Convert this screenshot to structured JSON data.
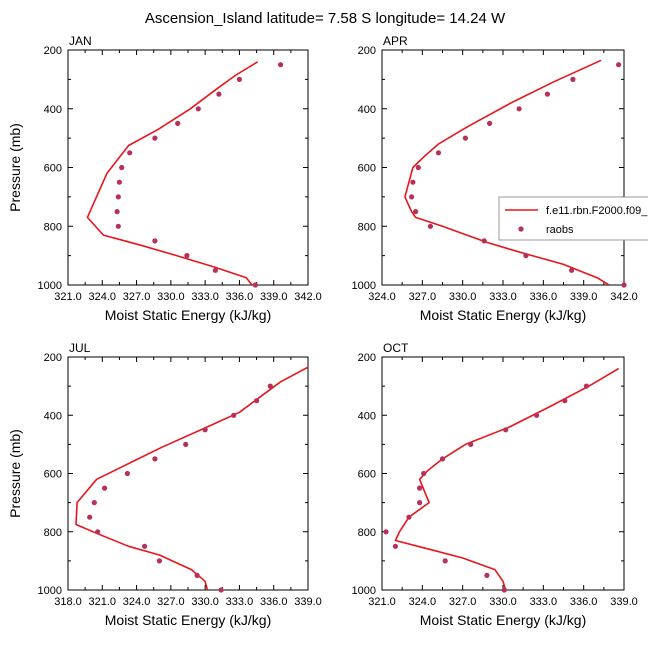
{
  "title": "Ascension_Island  latitude= 7.58 S longitude= 14.24 W",
  "colors": {
    "model_line": "#e8161c",
    "raobs_marker": "#b8305a",
    "axis": "#000000"
  },
  "chart_data": [
    {
      "type": "line",
      "panel": "JAN",
      "xlabel": "Moist Static Energy (kJ/kg)",
      "ylabel": "Pressure (mb)",
      "xlim": [
        321.0,
        342.0
      ],
      "ylim": [
        1000,
        200
      ],
      "xticks": [
        "321.0",
        "324.0",
        "327.0",
        "330.0",
        "333.0",
        "336.0",
        "339.0",
        "342.0"
      ],
      "yticks": [
        "200",
        "400",
        "600",
        "800",
        "1000"
      ],
      "series": [
        {
          "name": "f.e11.rbn.F2000.f09_",
          "style": "line",
          "x": [
            337.6,
            335.7,
            334.1,
            331.7,
            328.9,
            326.3,
            325.6,
            324.4,
            322.7,
            324.1,
            327.4,
            330.5,
            333.9,
            336.6,
            337.1
          ],
          "y": [
            240,
            285,
            330,
            400,
            470,
            525,
            560,
            620,
            770,
            830,
            865,
            900,
            940,
            975,
            1000
          ]
        },
        {
          "name": "raobs",
          "style": "marker",
          "x": [
            339.6,
            336.0,
            334.2,
            332.4,
            330.6,
            328.6,
            326.4,
            325.7,
            325.5,
            325.4,
            325.3,
            325.4,
            328.6,
            331.4,
            333.9,
            337.4
          ],
          "y": [
            250,
            300,
            350,
            400,
            450,
            500,
            550,
            600,
            650,
            700,
            750,
            800,
            850,
            900,
            950,
            1000
          ]
        }
      ]
    },
    {
      "type": "line",
      "panel": "APR",
      "xlabel": "Moist Static Energy (kJ/kg)",
      "ylabel": "",
      "xlim": [
        324.0,
        342.0
      ],
      "ylim": [
        1000,
        200
      ],
      "xticks": [
        "324.0",
        "327.0",
        "330.0",
        "333.0",
        "336.0",
        "339.0",
        "342.0"
      ],
      "yticks": [
        "200",
        "400",
        "600",
        "800",
        "1000"
      ],
      "series": [
        {
          "name": "f.e11.rbn.F2000.f09_",
          "style": "line",
          "x": [
            340.3,
            336.7,
            333.6,
            330.4,
            328.2,
            327.2,
            326.3,
            325.7,
            326.2,
            326.5,
            328.5,
            330.0,
            331.8,
            334.0,
            337.5,
            340.0,
            340.9
          ],
          "y": [
            235,
            310,
            380,
            460,
            520,
            560,
            600,
            700,
            750,
            770,
            800,
            825,
            855,
            885,
            930,
            975,
            1000
          ]
        },
        {
          "name": "raobs",
          "style": "marker",
          "x": [
            341.6,
            338.2,
            336.3,
            334.2,
            332.0,
            330.2,
            328.2,
            326.7,
            326.3,
            326.2,
            326.5,
            327.6,
            331.6,
            334.7,
            338.1,
            342.0
          ],
          "y": [
            250,
            300,
            350,
            400,
            450,
            500,
            550,
            600,
            650,
            700,
            750,
            800,
            850,
            900,
            950,
            1000
          ]
        }
      ]
    },
    {
      "type": "line",
      "panel": "JUL",
      "xlabel": "Moist Static Energy (kJ/kg)",
      "ylabel": "Pressure (mb)",
      "xlim": [
        318.0,
        339.0
      ],
      "ylim": [
        1000,
        200
      ],
      "xticks": [
        "318.0",
        "321.0",
        "324.0",
        "327.0",
        "330.0",
        "333.0",
        "336.0",
        "339.0"
      ],
      "yticks": [
        "200",
        "400",
        "600",
        "800",
        "1000"
      ],
      "series": [
        {
          "name": "f.e11.rbn.F2000.f09_",
          "style": "line",
          "x": [
            339.0,
            336.6,
            334.7,
            333.0,
            330.2,
            326.2,
            323.6,
            320.5,
            318.8,
            318.7,
            320.8,
            323.3,
            326.0,
            328.8,
            330.0,
            330.2
          ],
          "y": [
            235,
            285,
            340,
            390,
            440,
            510,
            560,
            620,
            700,
            775,
            810,
            850,
            880,
            930,
            970,
            1000
          ]
        },
        {
          "name": "raobs",
          "style": "marker",
          "x": [
            335.7,
            334.5,
            332.5,
            330.0,
            328.3,
            325.6,
            323.2,
            321.2,
            320.3,
            319.9,
            320.6,
            324.7,
            326.0,
            329.3,
            331.4
          ],
          "y": [
            300,
            350,
            400,
            450,
            500,
            550,
            600,
            650,
            700,
            750,
            800,
            850,
            900,
            950,
            1000
          ]
        }
      ]
    },
    {
      "type": "line",
      "panel": "OCT",
      "xlabel": "Moist Static Energy (kJ/kg)",
      "ylabel": "",
      "xlim": [
        321.0,
        339.0
      ],
      "ylim": [
        1000,
        200
      ],
      "xticks": [
        "321.0",
        "324.0",
        "327.0",
        "330.0",
        "333.0",
        "336.0",
        "339.0"
      ],
      "yticks": [
        "200",
        "400",
        "600",
        "800",
        "1000"
      ],
      "series": [
        {
          "name": "f.e11.rbn.F2000.f09_",
          "style": "line",
          "x": [
            338.6,
            336.4,
            333.5,
            330.5,
            327.2,
            325.5,
            324.4,
            323.8,
            324.5,
            323.0,
            322.3,
            322.0,
            324.5,
            327.0,
            329.4,
            330.0,
            330.2
          ],
          "y": [
            240,
            300,
            370,
            440,
            500,
            550,
            590,
            620,
            700,
            750,
            800,
            830,
            860,
            890,
            930,
            970,
            1000
          ]
        },
        {
          "name": "raobs",
          "style": "marker",
          "x": [
            336.2,
            334.6,
            332.5,
            330.2,
            327.6,
            325.5,
            324.1,
            323.8,
            323.8,
            323.0,
            321.3,
            322.0,
            325.7,
            328.8,
            330.1
          ],
          "y": [
            300,
            350,
            400,
            450,
            500,
            550,
            600,
            650,
            700,
            750,
            800,
            850,
            900,
            950,
            1000
          ]
        }
      ]
    }
  ],
  "legend": {
    "placement": "right of APR panel, middle",
    "entries": [
      {
        "label": "f.e11.rbn.F2000.f09_",
        "kind": "line"
      },
      {
        "label": "raobs",
        "kind": "marker"
      }
    ]
  }
}
